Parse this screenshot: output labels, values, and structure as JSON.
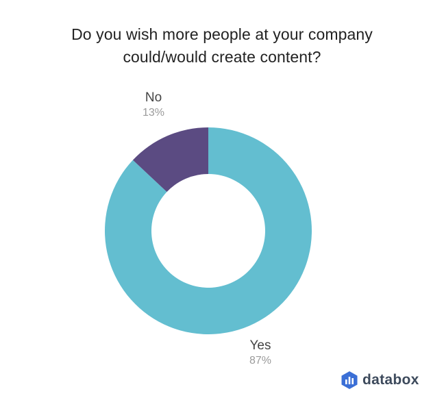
{
  "chart_data": {
    "type": "pie",
    "title_lines": [
      "Do you wish more people at your company",
      "could/would create content?"
    ],
    "slices": [
      {
        "name": "Yes",
        "value": 87,
        "label": "87%",
        "color": "#63bed0"
      },
      {
        "name": "No",
        "value": 13,
        "label": "13%",
        "color": "#5b4b82"
      }
    ],
    "donut": true,
    "legend": "none"
  },
  "brand": {
    "name": "databox",
    "icon": "databox-logo-icon"
  }
}
